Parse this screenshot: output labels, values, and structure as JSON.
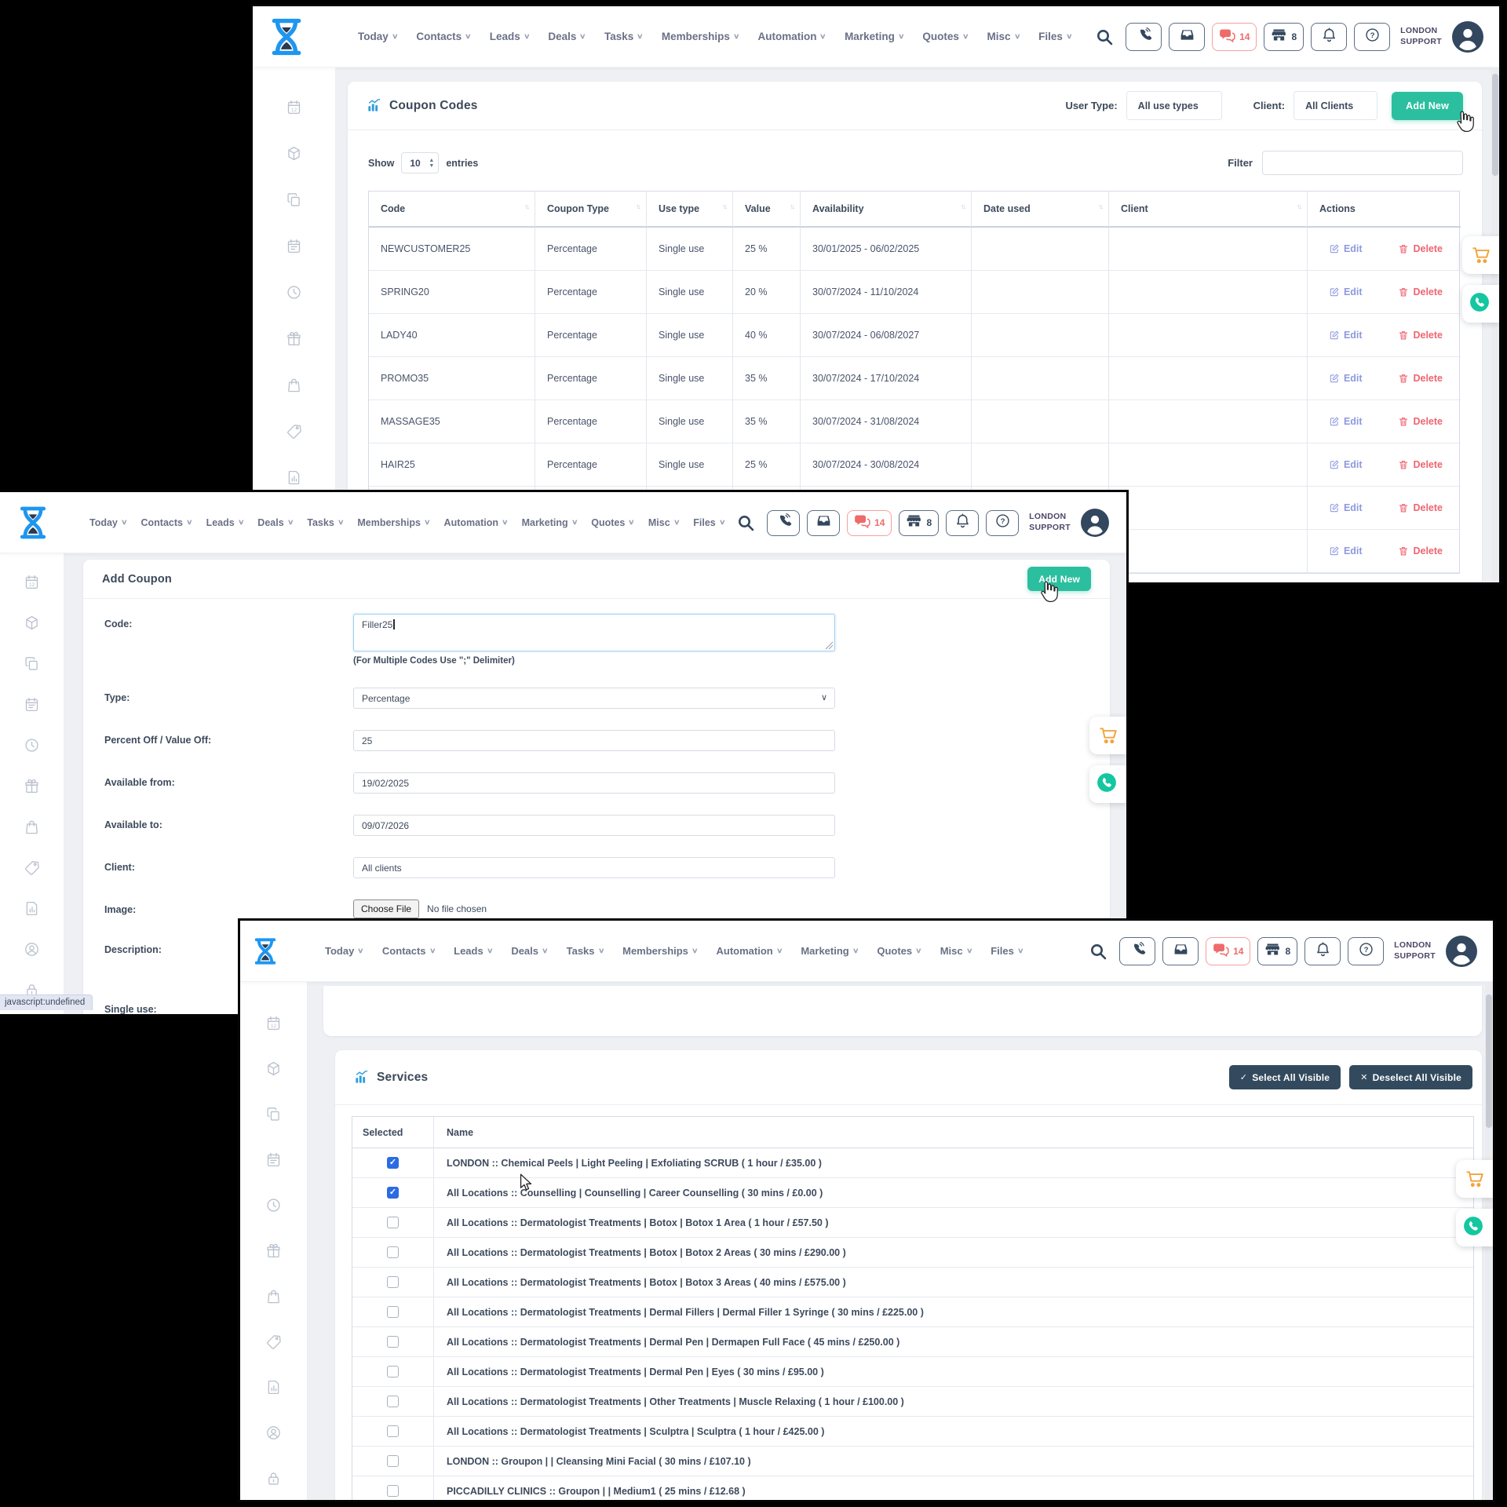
{
  "app": {
    "account_line1": "LONDON",
    "account_line2": "SUPPORT",
    "nav": [
      "Today",
      "Contacts",
      "Leads",
      "Deals",
      "Tasks",
      "Memberships",
      "Automation",
      "Marketing",
      "Quotes",
      "Misc",
      "Files"
    ],
    "badges": {
      "chat": "14",
      "store": "8"
    },
    "topbar_icons": [
      "search-icon",
      "phone-icon",
      "inbox-icon",
      "chat-icon",
      "store-icon",
      "bell-icon",
      "help-icon",
      "avatar-icon"
    ],
    "sidebar_icons": [
      "calendar",
      "box",
      "copy",
      "schedule",
      "history",
      "gift",
      "bag",
      "tag",
      "report",
      "member",
      "lock"
    ],
    "float_icons": [
      "cart-icon",
      "whatsapp-icon"
    ],
    "colors": {
      "accent_teal": "#2cbf9f",
      "navy_button": "#334a5e",
      "edit_link": "#8e99dd",
      "delete_link": "#ef6571",
      "checkbox_blue": "#2b6be4",
      "logo_blue": "#1e96f0",
      "cart_orange": "#f2a33c",
      "whatsapp_teal": "#14c7a0",
      "chat_red": "#ee6b6b"
    }
  },
  "coupons_window": {
    "title": "Coupon Codes",
    "user_type_label": "User Type:",
    "user_type_value": "All use types",
    "client_label": "Client:",
    "client_value": "All Clients",
    "add_new_label": "Add New",
    "show_label": "Show",
    "show_value": "10",
    "entries_label": "entries",
    "filter_label": "Filter",
    "filter_value": "",
    "columns": [
      "Code",
      "Coupon Type",
      "Use type",
      "Value",
      "Availability",
      "Date used",
      "Client",
      "Actions"
    ],
    "edit_label": "Edit",
    "delete_label": "Delete",
    "rows": [
      {
        "code": "NEWCUSTOMER25",
        "type": "Percentage",
        "use": "Single use",
        "value": "25 %",
        "availability": "30/01/2025 - 06/02/2025",
        "date_used": "",
        "client": ""
      },
      {
        "code": "SPRING20",
        "type": "Percentage",
        "use": "Single use",
        "value": "20 %",
        "availability": "30/07/2024 - 11/10/2024",
        "date_used": "",
        "client": ""
      },
      {
        "code": "LADY40",
        "type": "Percentage",
        "use": "Single use",
        "value": "40 %",
        "availability": "30/07/2024 - 06/08/2027",
        "date_used": "",
        "client": ""
      },
      {
        "code": "PROMO35",
        "type": "Percentage",
        "use": "Single use",
        "value": "35 %",
        "availability": "30/07/2024 - 17/10/2024",
        "date_used": "",
        "client": ""
      },
      {
        "code": "MASSAGE35",
        "type": "Percentage",
        "use": "Single use",
        "value": "35 %",
        "availability": "30/07/2024 - 31/08/2024",
        "date_used": "",
        "client": ""
      },
      {
        "code": "HAIR25",
        "type": "Percentage",
        "use": "Single use",
        "value": "25 %",
        "availability": "30/07/2024 - 30/08/2024",
        "date_used": "",
        "client": ""
      },
      {
        "code": "",
        "type": "",
        "use": "",
        "value": "",
        "availability": "",
        "date_used": "",
        "client": ""
      },
      {
        "code": "",
        "type": "",
        "use": "",
        "value": "",
        "availability": "",
        "date_used": "",
        "client": ""
      }
    ]
  },
  "addcoupon_window": {
    "title": "Add Coupon",
    "add_new_label": "Add New",
    "fields": {
      "code_label": "Code:",
      "code_value": "Filler25",
      "code_note": "(For Multiple Codes Use \";\" Delimiter)",
      "type_label": "Type:",
      "type_value": "Percentage",
      "percent_label": "Percent Off / Value Off:",
      "percent_value": "25",
      "from_label": "Available from:",
      "from_value": "19/02/2025",
      "to_label": "Available to:",
      "to_value": "09/07/2026",
      "client_label": "Client:",
      "client_value": "All clients",
      "image_label": "Image:",
      "choose_file_label": "Choose File",
      "no_file_label": "No file chosen",
      "description_label": "Description:",
      "single_use_label": "Single use:"
    },
    "status_tooltip": "javascript:undefined"
  },
  "services_window": {
    "title": "Services",
    "select_all_label": "Select All Visible",
    "deselect_all_label": "Deselect All Visible",
    "select_prefix": "✓",
    "deselect_prefix": "✕",
    "columns": [
      "Selected",
      "Name"
    ],
    "rows": [
      {
        "selected": true,
        "name": "LONDON :: Chemical Peels | Light Peeling | Exfoliating SCRUB ( 1 hour / £35.00 )"
      },
      {
        "selected": true,
        "name": "All Locations :: Counselling | Counselling | Career Counselling ( 30 mins / £0.00 )"
      },
      {
        "selected": false,
        "name": "All Locations :: Dermatologist Treatments | Botox | Botox 1 Area ( 1 hour / £57.50 )"
      },
      {
        "selected": false,
        "name": "All Locations :: Dermatologist Treatments | Botox | Botox 2 Areas ( 30 mins / £290.00 )"
      },
      {
        "selected": false,
        "name": "All Locations :: Dermatologist Treatments | Botox | Botox 3 Areas ( 40 mins / £575.00 )"
      },
      {
        "selected": false,
        "name": "All Locations :: Dermatologist Treatments | Dermal Fillers | Dermal Filler 1 Syringe ( 30 mins / £225.00 )"
      },
      {
        "selected": false,
        "name": "All Locations :: Dermatologist Treatments | Dermal Pen | Dermapen Full Face ( 45 mins / £250.00 )"
      },
      {
        "selected": false,
        "name": "All Locations :: Dermatologist Treatments | Dermal Pen | Eyes ( 30 mins / £95.00 )"
      },
      {
        "selected": false,
        "name": "All Locations :: Dermatologist Treatments | Other Treatments | Muscle Relaxing ( 1 hour / £100.00 )"
      },
      {
        "selected": false,
        "name": "All Locations :: Dermatologist Treatments | Sculptra | Sculptra ( 1 hour / £425.00 )"
      },
      {
        "selected": false,
        "name": "LONDON :: Groupon | | Cleansing Mini Facial ( 30 mins / £107.10 )"
      },
      {
        "selected": false,
        "name": "PICCADILLY CLINICS :: Groupon | | Medium1 ( 25 mins / £12.68 )"
      }
    ]
  }
}
